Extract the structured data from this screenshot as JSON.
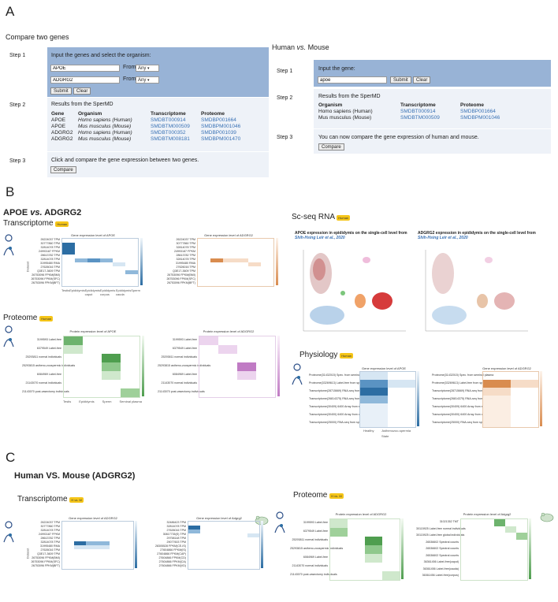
{
  "panels": {
    "a": "A",
    "b": "B",
    "c": "C"
  },
  "compare": {
    "title": "Compare two genes",
    "step1": "Step 1",
    "step2": "Step 2",
    "step3": "Step 3",
    "instruction": "Input the genes and select the organism:",
    "gene1_value": "APOE",
    "gene2_value": "ADGRG2",
    "from_label": "From",
    "org1": "Any",
    "org2": "Any",
    "submit": "Submit",
    "clear": "Clear",
    "results_title": "Results from the SperMD",
    "headers": [
      "Gene",
      "Organism",
      "Transcriptome",
      "Proteome"
    ],
    "rows": [
      [
        "APOE",
        "Homo sapiens (Human)",
        "SMDBT000914",
        "SMDBP001664"
      ],
      [
        "APOE",
        "Mus musculus (Mouse)",
        "SMDBTM000509",
        "SMDBPM001046"
      ],
      [
        "ADGRG2",
        "Homo sapiens (Human)",
        "SMDBT000352",
        "SMDBP001039"
      ],
      [
        "ADGRG2",
        "Mus musculus (Mouse)",
        "SMDBTM008181",
        "SMDBPM001470"
      ]
    ],
    "step3_text": "Click and compare the gene expression between two genes.",
    "compare_btn": "Compare"
  },
  "hvm": {
    "title_a": "Human",
    "title_vs": "vs.",
    "title_b": "Mouse",
    "step1": "Step 1",
    "step2": "Step 2",
    "step3": "Step 3",
    "instruction": "Input the gene:",
    "gene_value": "apoe",
    "submit": "Submit",
    "clear": "Clear",
    "results_title": "Results from the SperMD",
    "headers": [
      "Organism",
      "Transcriptome",
      "Proteome"
    ],
    "rows": [
      [
        "Homo sapiens (Human)",
        "SMDBT000914",
        "SMDBP001664"
      ],
      [
        "Mus musculus (Mouse)",
        "SMDBTM000509",
        "SMDBPM001046"
      ]
    ],
    "step3_text": "You can now compare the gene expression of human and mouse.",
    "compare_btn": "Compare"
  },
  "b": {
    "title_a": "APOE",
    "title_vs": "vs.",
    "title_b": "ADGRG2",
    "transcriptome": "Transcriptome",
    "proteome": "Proteome",
    "scseq": "Sc-seq RNA",
    "physiology": "Physiology",
    "badge_human": "Human",
    "t_apoe_title": "Gene expression level of APOE",
    "t_adgrg2_title": "Gene expression level of ADGRG2",
    "p_apoe_title": "Protein expression level of APOE",
    "p_adgrg2_title": "Protein expression level of ADGRG2",
    "ph_apoe_title": "Gene expression level of APOE",
    "ph_adgrg2_title": "Gene expression level of ADGRG2",
    "dataset_label": "Dataset",
    "state_label": "State",
    "sc_apoe_caption_gene": "APOE",
    "sc_apoe_caption_mid": " expression in ",
    "sc_tissue": "epididymis",
    "sc_caption_end": " on the single-cell level from ",
    "sc_ref": "Shih-Hsing Leir et al., 2020",
    "sc_adgrg2_caption_gene": "ADGRG2",
    "sc_apoe_caption_pre": "expression in",
    "t_rows": [
      "26224037 TPM",
      "30777860 TPM",
      "32814078 TPM",
      "24993187 FPKM",
      "28613782 TPM",
      "32814078 TPM",
      "31995480 RMA",
      "27626016 TPM",
      "Q3E17-3609 TPM",
      "26753096 FPKM(BMI)",
      "26753096 FPKM(SFC)",
      "26753096 FPKM(BFT)"
    ],
    "t_cols": [
      "Testis",
      "Epididymis",
      "Epididymis caput",
      "Epididymis corpus",
      "Epididymis cauda",
      "Sperm"
    ],
    "p_rows": [
      "3199593 Label-free",
      "6379549 Label-free",
      "25293811 normal individuals",
      "25293815 astheno-zoospermic individuals",
      "6084969 Label-free",
      "21143070 normal individuals",
      "21143070 post-vasectomy individuals"
    ],
    "p_cols": [
      "Testis",
      "Epididymis",
      "Sperm",
      "Seminal plasma"
    ],
    "ph_rows": [
      "Proteome(31432015) Spec. from seminal plasma",
      "Proteome(33269613) Label-free from sperm",
      "Transcriptome(28715669) RNA-seq from sperm",
      "Transcriptome(26814375) RNA-seq from sperm",
      "Transcriptome(30409) 6400 Array from sperm",
      "Transcriptome(30400) 6400 Array from corpus",
      "Transcriptome(25000) RNA-seq from sperm"
    ],
    "ph_cols": [
      "Healthy",
      "Asthenozoo-spermia"
    ]
  },
  "c": {
    "title": "Human VS. Mouse (ADGRG2)",
    "transcriptome": "Transcriptome",
    "proteome": "Proteome",
    "badge_hvm": "H vs. M",
    "t_human_title": "Gene expression level of ADGRG2",
    "t_mouse_title": "Gene expression level of Adgrg2",
    "p_human_title": "Protein expression level of ADGRG2",
    "p_mouse_title": "Protein expression level of Adgrg2",
    "dataset_label": "Dataset",
    "t_human_rows": [
      "26224037 TPM",
      "30777860 TPM",
      "32814078 TPM",
      "24993187 FPKM",
      "28613782 TPM",
      "32814078 TPM",
      "31995480 RMA",
      "27626016 TPM",
      "Q3E17-3609 TPM",
      "26753096 FPKM(BMI)",
      "26753096 FPKM(SFC)",
      "26753096 FPKM(BFT)"
    ],
    "t_mouse_rows": [
      "32486423 TPM",
      "32814078 TPM",
      "27626016 TPM",
      "30817735(S) TPM",
      "29758148 TPM",
      "29077603 TPM",
      "28305528 FPKM(CE-IS)",
      "27604866 FPKM(IS)",
      "27604866 FPKM(CAP)",
      "27604866 FPKM(CD)",
      "27604866 FPKM(CA)",
      "27604866 FPKM(VD)"
    ],
    "p_human_rows": [
      "3199593 Label-free",
      "6379549 Label-free",
      "25293811 normal individuals",
      "25293815 astheno-zoospermic individuals",
      "6084969 Label-free",
      "21143070 normal individuals",
      "21143070 post-vasectomy individuals"
    ],
    "p_mouse_rows": [
      "31021352 TMT",
      "30115925 Label-free normal individuals",
      "30115925 Label-free global individuals",
      "26536602 Spectral counts",
      "26536602 Spectral counts",
      "26536602 Spectral counts",
      "36361456 Label-free(caput)",
      "36361456 Label-free(cauda)",
      "36361456 Label-free(corpus)"
    ]
  },
  "colors": {
    "blue_dark": "#2c6da3",
    "blue_mid": "#8fb8da",
    "blue_light": "#d6e6f3",
    "orange_dark": "#d98c4f",
    "orange_light": "#f6dcc7",
    "green_dark": "#6db36d",
    "green_light": "#cfe8cc",
    "purple_dark": "#c07bc4",
    "purple_light": "#ecd4ee",
    "badge": "#f5c518"
  }
}
